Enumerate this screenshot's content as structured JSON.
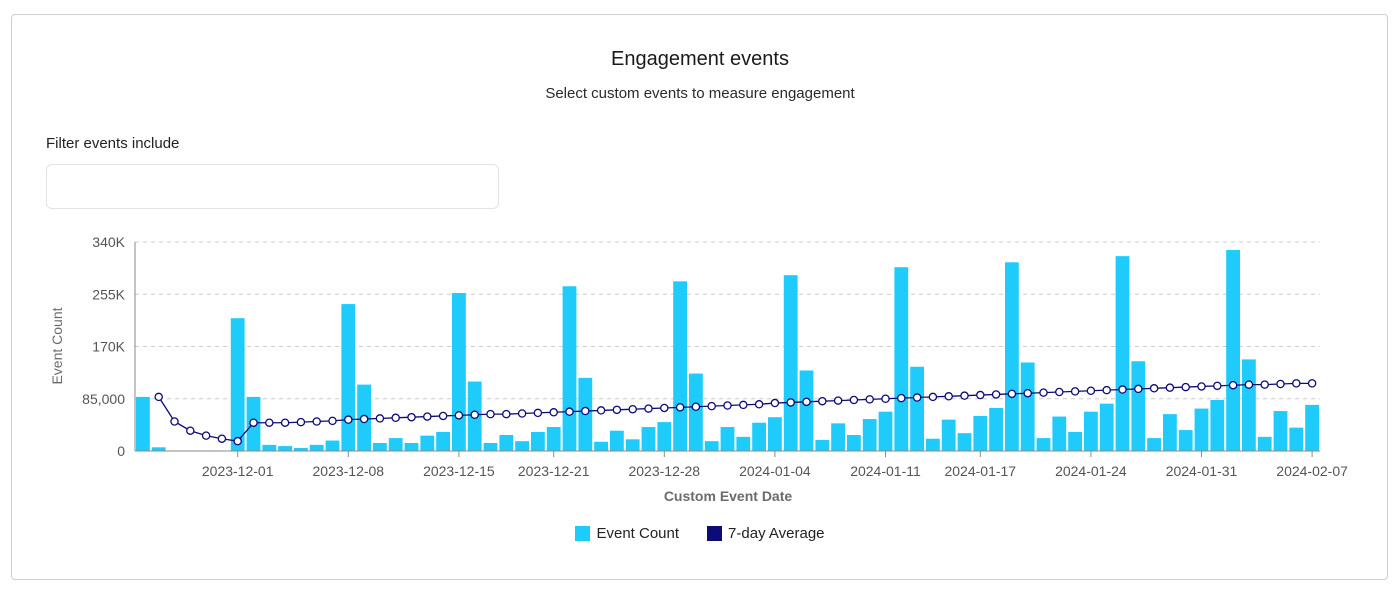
{
  "card": {
    "title": "Engagement events",
    "subtitle": "Select custom events to measure engagement"
  },
  "filter": {
    "label": "Filter events include",
    "value": "",
    "placeholder": ""
  },
  "colors": {
    "bar": "#1ecbfa",
    "line": "#0c0c78",
    "grid": "#cccccc",
    "axis": "#888888"
  },
  "legend": [
    {
      "label": "Event Count",
      "color": "#1ecbfa"
    },
    {
      "label": "7-day Average",
      "color": "#0c0c78"
    }
  ],
  "chart_data": {
    "type": "bar",
    "title": "Engagement events",
    "xlabel": "Custom Event Date",
    "ylabel": "Event Count",
    "ylim": [
      0,
      340000
    ],
    "yticks": [
      0,
      85000,
      170000,
      255000,
      340000
    ],
    "ytick_labels": [
      "0",
      "85,000",
      "170K",
      "255K",
      "340K"
    ],
    "grid": true,
    "legend_position": "bottom",
    "start_date": "2023-11-25",
    "xtick_labels": [
      {
        "index": 6,
        "label": "2023-12-01"
      },
      {
        "index": 13,
        "label": "2023-12-08"
      },
      {
        "index": 20,
        "label": "2023-12-15"
      },
      {
        "index": 26,
        "label": "2023-12-21"
      },
      {
        "index": 33,
        "label": "2023-12-28"
      },
      {
        "index": 40,
        "label": "2024-01-04"
      },
      {
        "index": 47,
        "label": "2024-01-11"
      },
      {
        "index": 53,
        "label": "2024-01-17"
      },
      {
        "index": 60,
        "label": "2024-01-24"
      },
      {
        "index": 67,
        "label": "2024-01-31"
      },
      {
        "index": 74,
        "label": "2024-02-07"
      }
    ],
    "series": [
      {
        "name": "Event Count",
        "type": "bar",
        "values": [
          88000,
          6000,
          0,
          0,
          0,
          0,
          216000,
          88000,
          10000,
          8000,
          5000,
          10000,
          17000,
          239000,
          108000,
          13000,
          21000,
          13000,
          25000,
          31000,
          257000,
          113000,
          13000,
          26000,
          16000,
          31000,
          39000,
          268000,
          119000,
          15000,
          33000,
          19000,
          39000,
          47000,
          276000,
          126000,
          16000,
          39000,
          23000,
          46000,
          55000,
          286000,
          131000,
          18000,
          45000,
          26000,
          52000,
          64000,
          299000,
          137000,
          20000,
          51000,
          29000,
          57000,
          70000,
          307000,
          144000,
          21000,
          56000,
          31000,
          64000,
          77000,
          317000,
          146000,
          21000,
          60000,
          34000,
          69000,
          83000,
          327000,
          149000,
          23000,
          65000,
          38000,
          75000
        ]
      },
      {
        "name": "7-day Average",
        "type": "line",
        "start_index": 1,
        "values": [
          88000,
          48000,
          33000,
          25000,
          20000,
          16000,
          46000,
          46000,
          46000,
          47000,
          48000,
          49000,
          51000,
          52000,
          53000,
          54000,
          55000,
          56000,
          57000,
          58000,
          59000,
          60000,
          60000,
          61000,
          62000,
          63000,
          64000,
          65000,
          66000,
          67000,
          68000,
          69000,
          70000,
          71000,
          72000,
          73000,
          74000,
          75000,
          76000,
          78000,
          79000,
          80000,
          81000,
          82000,
          83000,
          84000,
          85000,
          86000,
          87000,
          88000,
          89000,
          90000,
          91000,
          92000,
          93000,
          94000,
          95000,
          96000,
          97000,
          98000,
          99000,
          100000,
          101000,
          102000,
          103000,
          104000,
          105000,
          106000,
          107000,
          108000,
          108000,
          109000,
          110000,
          110000
        ]
      }
    ]
  }
}
